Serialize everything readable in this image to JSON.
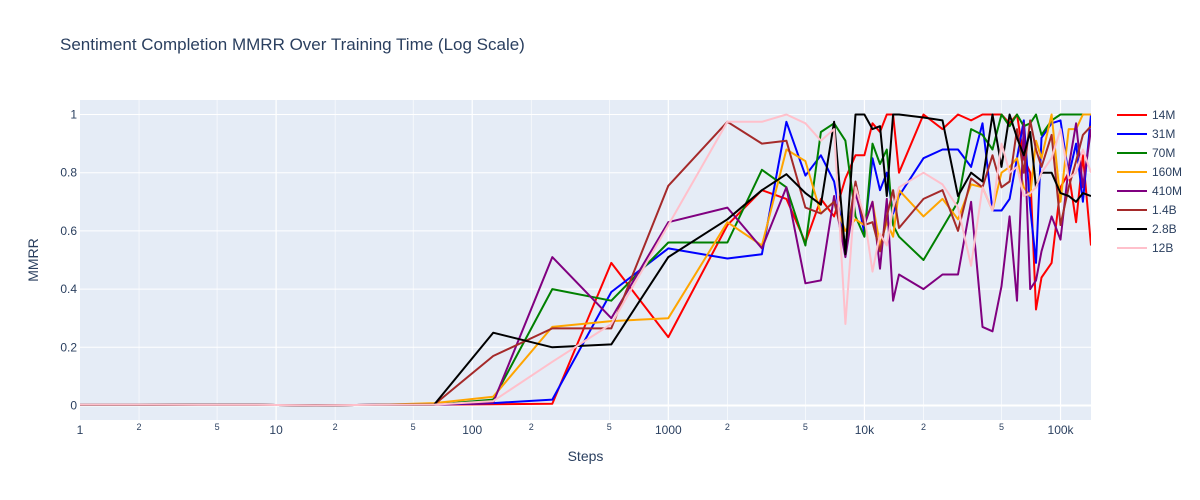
{
  "chart_data": {
    "type": "line",
    "title": "Sentiment Completion MMRR Over Training Time (Log Scale)",
    "xlabel": "Steps",
    "ylabel": "MMRR",
    "x_scale": "log",
    "xlim": [
      1,
      143000
    ],
    "ylim": [
      -0.05,
      1.05
    ],
    "grid": true,
    "legend_position": "right",
    "x_major_ticks": [
      {
        "value": 1,
        "label": "1"
      },
      {
        "value": 10,
        "label": "10"
      },
      {
        "value": 100,
        "label": "100"
      },
      {
        "value": 1000,
        "label": "1000"
      },
      {
        "value": 10000,
        "label": "10k"
      },
      {
        "value": 100000,
        "label": "100k"
      }
    ],
    "x_minor_ticks": [
      {
        "value": 2,
        "label": "2"
      },
      {
        "value": 5,
        "label": "5"
      },
      {
        "value": 20,
        "label": "2"
      },
      {
        "value": 50,
        "label": "5"
      },
      {
        "value": 200,
        "label": "2"
      },
      {
        "value": 500,
        "label": "5"
      },
      {
        "value": 2000,
        "label": "2"
      },
      {
        "value": 5000,
        "label": "5"
      },
      {
        "value": 20000,
        "label": "2"
      },
      {
        "value": 50000,
        "label": "5"
      }
    ],
    "y_ticks": [
      {
        "value": 0,
        "label": "0"
      },
      {
        "value": 0.2,
        "label": "0.2"
      },
      {
        "value": 0.4,
        "label": "0.4"
      },
      {
        "value": 0.6,
        "label": "0.6"
      },
      {
        "value": 0.8,
        "label": "0.8"
      },
      {
        "value": 1,
        "label": "1"
      }
    ],
    "x": [
      1,
      2,
      4,
      8,
      16,
      32,
      64,
      128,
      256,
      512,
      1000,
      2000,
      3000,
      4000,
      5000,
      6000,
      7000,
      8000,
      9000,
      10000,
      11000,
      12000,
      13000,
      14000,
      15000,
      20000,
      25000,
      30000,
      35000,
      40000,
      45000,
      50000,
      55000,
      60000,
      65000,
      70000,
      75000,
      80000,
      90000,
      100000,
      110000,
      120000,
      130000,
      143000
    ],
    "series": [
      {
        "name": "14M",
        "color": "#ff0000",
        "values": [
          0.003,
          0.003,
          0.002,
          0.002,
          0.001,
          0.002,
          0.003,
          0.004,
          0.006,
          0.49,
          0.235,
          0.62,
          0.74,
          0.71,
          0.56,
          0.71,
          0.65,
          0.78,
          0.86,
          0.86,
          0.97,
          0.94,
          1.0,
          1.0,
          0.8,
          1.0,
          0.95,
          1.0,
          0.98,
          1.0,
          1.0,
          1.0,
          0.97,
          1.0,
          0.85,
          0.8,
          0.33,
          0.44,
          0.49,
          0.75,
          0.8,
          0.63,
          0.86,
          0.55
        ]
      },
      {
        "name": "31M",
        "color": "#0000ff",
        "values": [
          0.003,
          0.003,
          0.002,
          0.002,
          0.001,
          0.002,
          0.003,
          0.008,
          0.02,
          0.39,
          0.54,
          0.505,
          0.52,
          0.975,
          0.79,
          0.86,
          0.77,
          0.55,
          0.75,
          0.59,
          0.85,
          0.74,
          0.8,
          0.66,
          0.72,
          0.85,
          0.88,
          0.88,
          0.82,
          0.97,
          0.67,
          0.67,
          0.71,
          0.85,
          0.98,
          0.68,
          0.49,
          0.92,
          0.97,
          0.98,
          0.79,
          0.9,
          0.7,
          1.0
        ]
      },
      {
        "name": "70M",
        "color": "#008000",
        "values": [
          0.003,
          0.003,
          0.002,
          0.002,
          0.001,
          0.002,
          0.003,
          0.02,
          0.4,
          0.36,
          0.56,
          0.56,
          0.81,
          0.75,
          0.55,
          0.94,
          0.97,
          0.91,
          0.65,
          0.58,
          0.9,
          0.83,
          0.88,
          0.62,
          0.58,
          0.5,
          0.61,
          0.7,
          0.95,
          0.93,
          0.88,
          1.0,
          0.96,
          1.0,
          0.96,
          0.97,
          1.0,
          0.93,
          0.98,
          1.0,
          1.0,
          1.0,
          1.0,
          1.0
        ]
      },
      {
        "name": "160M",
        "color": "#ffa500",
        "values": [
          0.003,
          0.003,
          0.002,
          0.002,
          0.001,
          0.002,
          0.008,
          0.03,
          0.27,
          0.29,
          0.3,
          0.63,
          0.55,
          0.88,
          0.84,
          0.66,
          0.7,
          0.6,
          0.64,
          0.62,
          0.7,
          0.55,
          0.63,
          0.58,
          0.74,
          0.65,
          0.71,
          0.64,
          0.76,
          0.75,
          0.67,
          0.8,
          0.82,
          0.85,
          0.75,
          0.72,
          0.91,
          0.85,
          1.0,
          0.7,
          0.95,
          0.95,
          1.0,
          1.0
        ]
      },
      {
        "name": "410M",
        "color": "#800080",
        "values": [
          0.003,
          0.003,
          0.002,
          0.002,
          0.001,
          0.002,
          0.003,
          0.01,
          0.51,
          0.3,
          0.63,
          0.68,
          0.54,
          0.75,
          0.42,
          0.43,
          0.72,
          0.51,
          0.73,
          0.62,
          0.7,
          0.47,
          0.71,
          0.36,
          0.45,
          0.4,
          0.45,
          0.45,
          0.7,
          0.27,
          0.255,
          0.41,
          0.65,
          0.36,
          0.97,
          0.4,
          0.43,
          0.53,
          0.65,
          0.57,
          0.82,
          0.97,
          0.75,
          0.95
        ]
      },
      {
        "name": "1.4B",
        "color": "#a52a2a",
        "values": [
          0.003,
          0.003,
          0.002,
          0.002,
          0.001,
          0.002,
          0.003,
          0.17,
          0.265,
          0.265,
          0.755,
          0.975,
          0.9,
          0.91,
          0.68,
          0.66,
          0.7,
          0.55,
          0.77,
          0.62,
          0.63,
          0.53,
          0.65,
          0.74,
          0.61,
          0.71,
          0.74,
          0.6,
          0.78,
          0.75,
          0.86,
          0.75,
          0.77,
          0.95,
          0.8,
          0.98,
          0.88,
          0.82,
          0.93,
          0.62,
          0.75,
          0.84,
          0.93,
          0.96
        ]
      },
      {
        "name": "2.8B",
        "color": "#000000",
        "values": [
          0.003,
          0.003,
          0.002,
          0.002,
          0.001,
          0.002,
          0.003,
          0.25,
          0.2,
          0.21,
          0.51,
          0.64,
          0.74,
          0.795,
          0.73,
          0.69,
          0.975,
          0.52,
          1.0,
          1.0,
          0.95,
          0.96,
          0.72,
          1.0,
          1.0,
          0.99,
          0.98,
          0.72,
          0.8,
          0.77,
          1.0,
          0.82,
          1.0,
          0.92,
          0.86,
          0.94,
          0.75,
          0.8,
          0.8,
          0.73,
          0.72,
          0.7,
          0.73,
          0.72
        ]
      },
      {
        "name": "12B",
        "color": "#ffc0cb",
        "values": [
          0.003,
          0.003,
          0.002,
          0.002,
          0.001,
          0.002,
          0.003,
          0.015,
          0.15,
          0.28,
          0.62,
          0.975,
          0.975,
          1.0,
          0.97,
          0.91,
          0.95,
          0.28,
          0.75,
          0.65,
          0.46,
          0.59,
          0.55,
          0.68,
          0.75,
          0.8,
          0.76,
          0.68,
          0.48,
          0.75,
          0.67,
          0.9,
          0.8,
          0.82,
          0.72,
          0.73,
          0.75,
          0.8,
          0.85,
          0.95,
          0.78,
          0.8,
          0.88,
          0.8
        ]
      }
    ]
  }
}
